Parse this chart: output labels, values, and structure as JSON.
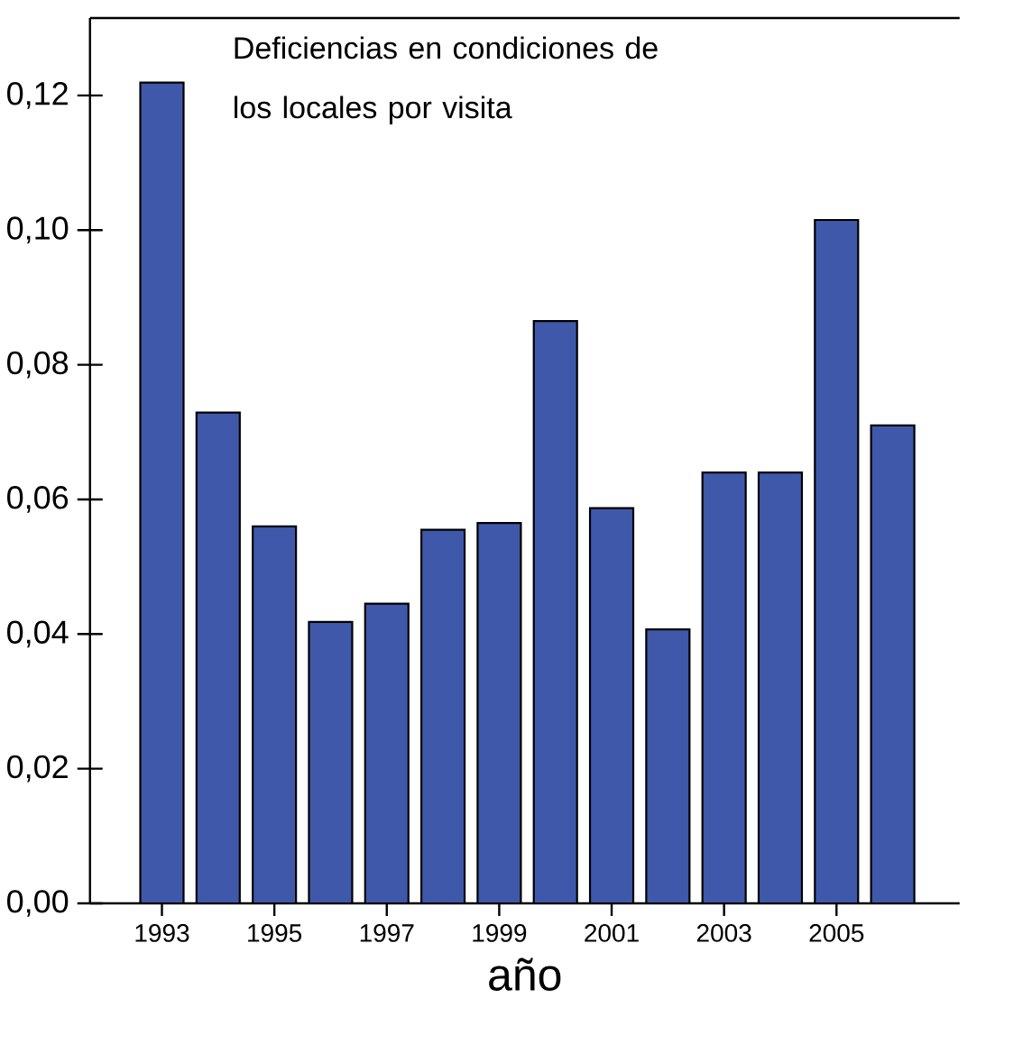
{
  "chart_data": {
    "type": "bar",
    "title": "Deficiencias en condiciones de los locales por visita",
    "xlabel": "año",
    "categories": [
      "1993",
      null,
      "1995",
      null,
      "1997",
      null,
      "1999",
      null,
      "2001",
      null,
      "2003",
      null,
      "2005",
      null
    ],
    "values": [
      0.1219,
      0.0729,
      0.056,
      0.0418,
      0.0445,
      0.0555,
      0.0565,
      0.0865,
      0.0587,
      0.0407,
      0.064,
      0.064,
      0.1015,
      0.071
    ],
    "color": "#3f58aa",
    "ylim": [
      0,
      0.1315
    ],
    "yticks": [
      {
        "value": 0,
        "label": "0,00"
      },
      {
        "value": 0.02,
        "label": "0,02"
      },
      {
        "value": 0.04,
        "label": "0,04"
      },
      {
        "value": 0.06,
        "label": "0,06"
      },
      {
        "value": 0.08,
        "label": "0,08"
      },
      {
        "value": 0.1,
        "label": "0,10"
      },
      {
        "value": 0.12,
        "label": "0,12"
      }
    ],
    "grid": false
  }
}
